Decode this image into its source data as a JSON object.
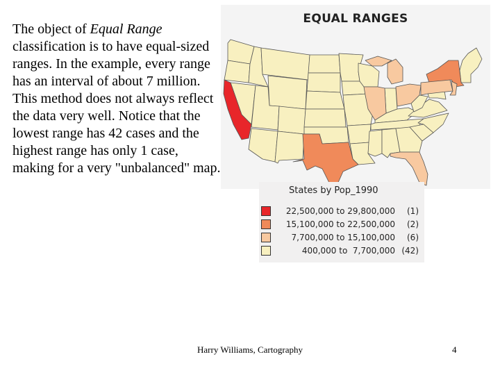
{
  "slide": {
    "text_parts": [
      "The object of ",
      "Equal Range",
      " classification is to have equal-sized ranges. In the example, every range has an interval of about 7 million. This method does not always reflect the data very well. Notice that the lowest range has 42 cases and the highest range has only 1 case, making for a very \"unbalanced\" map."
    ],
    "footer": "Harry Williams, Cartography",
    "page_number": "4"
  },
  "map": {
    "title": "EQUAL RANGES",
    "legend": {
      "title": "States by Pop_1990",
      "classes": [
        {
          "range": "22,500,000 to 29,800,000",
          "count": "(1)",
          "color": "#e8262a"
        },
        {
          "range": "15,100,000 to 22,500,000",
          "count": "(2)",
          "color": "#f08a5a"
        },
        {
          "range": "7,700,000 to 15,100,000",
          "count": "(6)",
          "color": "#f8c9a0"
        },
        {
          "range": "400,000 to  7,700,000",
          "count": "(42)",
          "color": "#f8f0c0"
        }
      ]
    },
    "state_classes": {
      "California": "22,500,000 to 29,800,000",
      "Texas": "15,100,000 to 22,500,000",
      "New York": "15,100,000 to 22,500,000",
      "Florida": "7,700,000 to 15,100,000",
      "Illinois": "7,700,000 to 15,100,000",
      "Pennsylvania": "7,700,000 to 15,100,000",
      "Ohio": "7,700,000 to 15,100,000",
      "Michigan": "7,700,000 to 15,100,000",
      "New Jersey": "7,700,000 to 15,100,000"
    },
    "colors": {
      "background": "#f4f4f4",
      "state_border": "#555555"
    }
  }
}
